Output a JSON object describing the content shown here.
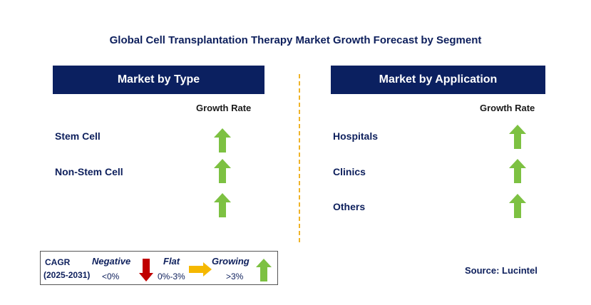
{
  "title": "Global Cell Transplantation Therapy Market Growth Forecast by Segment",
  "left_panel": {
    "header": "Market by Type",
    "growth_label": "Growth Rate",
    "rows": [
      {
        "label": "Stem Cell",
        "trend": "growing"
      },
      {
        "label": "Non-Stem Cell",
        "trend": "growing"
      },
      {
        "label": "",
        "trend": "growing"
      }
    ]
  },
  "right_panel": {
    "header": "Market by Application",
    "growth_label": "Growth Rate",
    "rows": [
      {
        "label": "Hospitals",
        "trend": "growing"
      },
      {
        "label": "Clinics",
        "trend": "growing"
      },
      {
        "label": "Others",
        "trend": "growing"
      }
    ]
  },
  "legend": {
    "cagr": "CAGR",
    "period": "(2025-2031)",
    "negative_label": "Negative",
    "negative_range": "<0%",
    "flat_label": "Flat",
    "flat_range": "0%-3%",
    "growing_label": "Growing",
    "growing_range": ">3%"
  },
  "source": "Source: Lucintel",
  "colors": {
    "header_bg": "#0b2060",
    "growing": "#7dc142",
    "negative": "#c00000",
    "flat": "#f5b800",
    "divider": "#f0b429"
  }
}
